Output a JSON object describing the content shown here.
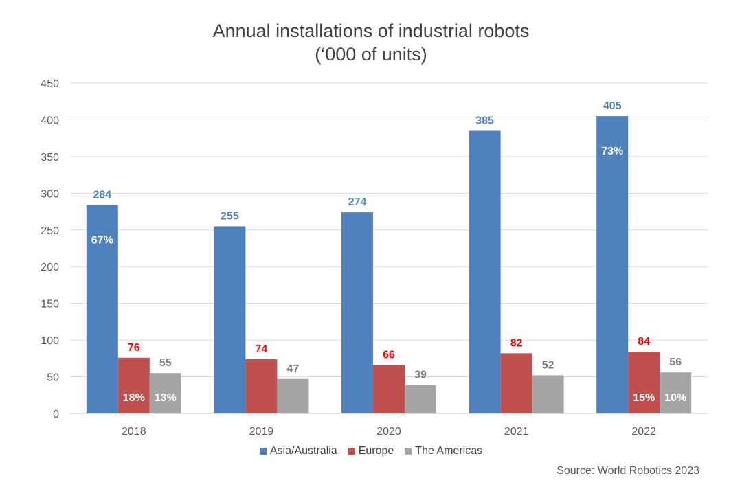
{
  "chart_data": {
    "type": "bar",
    "title": "Annual installations of industrial robots",
    "subtitle": "(‘000 of units)",
    "categories": [
      "2018",
      "2019",
      "2020",
      "2021",
      "2022"
    ],
    "series": [
      {
        "name": "Asia/Australia",
        "color": "#4F81BD",
        "label_color": "#4F81BD",
        "values": [
          284,
          255,
          274,
          385,
          405
        ],
        "shares": [
          "67%",
          "",
          "",
          "",
          "73%"
        ]
      },
      {
        "name": "Europe",
        "color": "#C0504D",
        "label_color": "#FF0000",
        "values": [
          76,
          74,
          66,
          82,
          84
        ],
        "shares": [
          "18%",
          "",
          "",
          "",
          "15%"
        ]
      },
      {
        "name": "The Americas",
        "color": "#A5A5A5",
        "label_color": "#7F7F7F",
        "values": [
          55,
          47,
          39,
          52,
          56
        ],
        "shares": [
          "13%",
          "",
          "",
          "",
          "10%"
        ]
      }
    ],
    "ylim": [
      0,
      450
    ],
    "yticks": [
      0,
      50,
      100,
      150,
      200,
      250,
      300,
      350,
      400,
      450
    ],
    "xlabel": "",
    "ylabel": "",
    "grid": true,
    "legend": "bottom-center"
  },
  "source": "Source: World Robotics 2023"
}
